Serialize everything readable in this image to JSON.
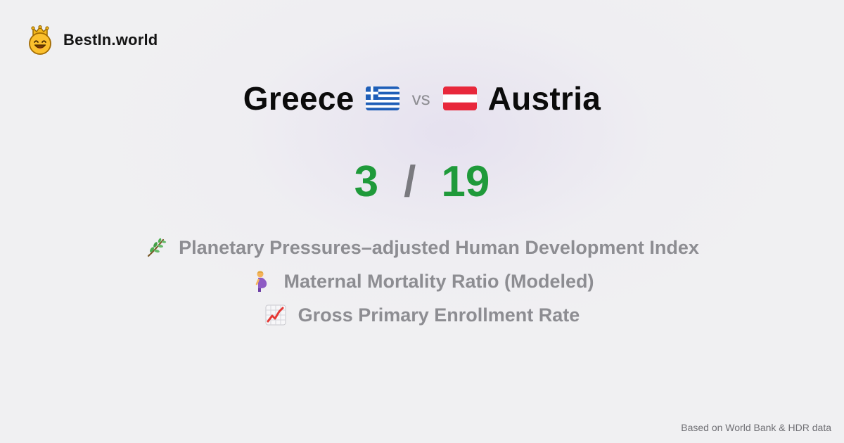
{
  "brand": {
    "name": "BestIn.world",
    "logo_icon": "crown-smiley-icon"
  },
  "comparison": {
    "left": {
      "name": "Greece",
      "flag_icon": "greece-flag-icon"
    },
    "vs": "vs",
    "right": {
      "name": "Austria",
      "flag_icon": "austria-flag-icon"
    }
  },
  "score": {
    "left": "3",
    "separator": "/",
    "right": "19",
    "color": "#1f9a3a"
  },
  "metrics": [
    {
      "icon": "herb-icon",
      "label": "Planetary Pressures–adjusted Human Development Index"
    },
    {
      "icon": "pregnant-woman-icon",
      "label": "Maternal Mortality Ratio (Modeled)"
    },
    {
      "icon": "chart-increasing-icon",
      "label": "Gross Primary Enrollment Rate"
    }
  ],
  "footer": {
    "source": "Based on World Bank & HDR data"
  }
}
